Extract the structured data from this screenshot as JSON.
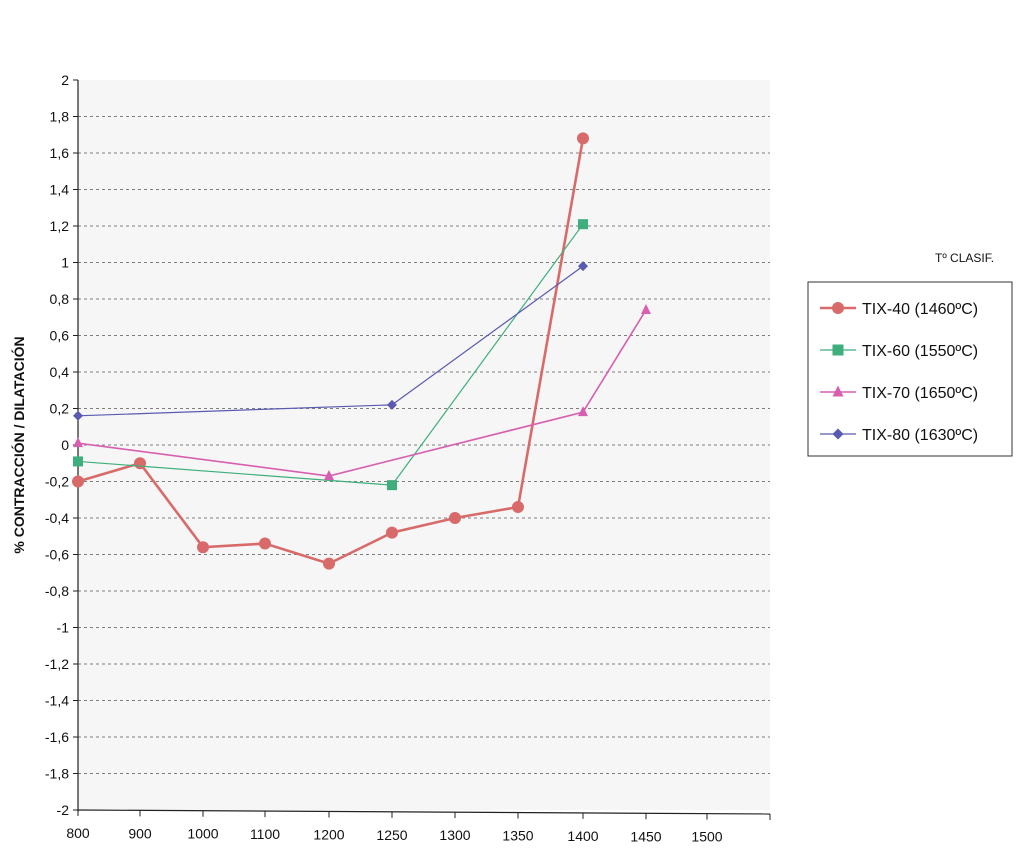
{
  "chart_data": {
    "type": "line",
    "title": "",
    "xlabel": "",
    "ylabel": "% CONTRACCIÓN / DILATACIÓN",
    "ylim": [
      -2,
      2
    ],
    "y_ticks": [
      "2",
      "1,8",
      "1,6",
      "1,4",
      "1,2",
      "1",
      "0,8",
      "0,6",
      "0,4",
      "0,2",
      "0",
      "-0,2",
      "-0,4",
      "-0,6",
      "-0,8",
      "-1",
      "-1,2",
      "-1,4",
      "-1,6",
      "-1,8",
      "-2"
    ],
    "x_ticks": [
      "800",
      "900",
      "1000",
      "1100",
      "1200",
      "1250",
      "1300",
      "1350",
      "1400",
      "1450",
      "1500"
    ],
    "grid": "horizontal dashed",
    "legend_title": "Tº CLASIF.",
    "legend_position": "right",
    "series": [
      {
        "name": "TIX-40 (1460ºC)",
        "color": "#d96a6a",
        "marker": "circle",
        "x": [
          "800",
          "900",
          "1000",
          "1100",
          "1200",
          "1250",
          "1300",
          "1350",
          "1400"
        ],
        "values": [
          -0.2,
          -0.1,
          -0.56,
          -0.54,
          -0.65,
          -0.48,
          -0.4,
          -0.34,
          1.68
        ]
      },
      {
        "name": "TIX-60 (1550ºC)",
        "color": "#3fae7d",
        "marker": "square",
        "x": [
          "800",
          "1250",
          "1400"
        ],
        "values": [
          -0.09,
          -0.22,
          1.21
        ]
      },
      {
        "name": "TIX-70 (1650ºC)",
        "color": "#d85fb0",
        "marker": "triangle",
        "x": [
          "800",
          "1200",
          "1400",
          "1450"
        ],
        "values": [
          0.01,
          -0.17,
          0.18,
          0.74
        ]
      },
      {
        "name": "TIX-80 (1630ºC)",
        "color": "#5a5ab0",
        "marker": "diamond",
        "x": [
          "800",
          "1250",
          "1400"
        ],
        "values": [
          0.16,
          0.22,
          0.98
        ]
      }
    ]
  }
}
